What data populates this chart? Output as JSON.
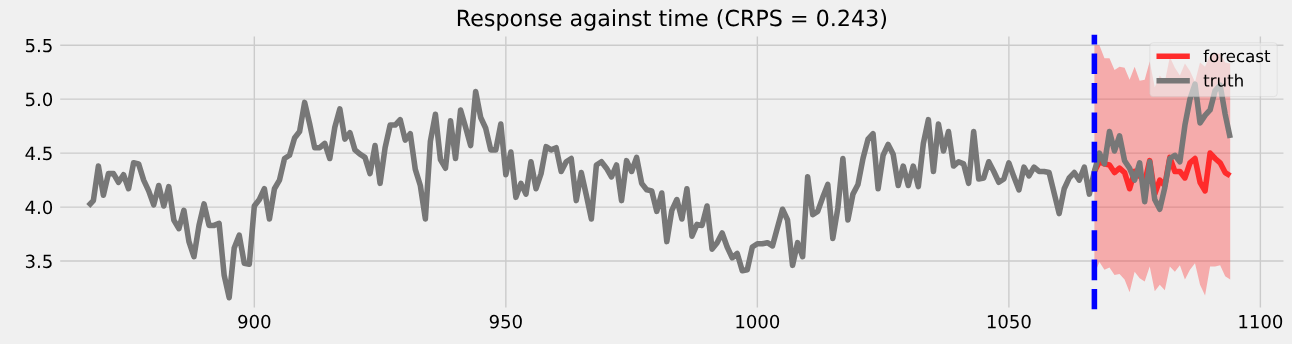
{
  "chart_data": {
    "type": "line",
    "title": "Response against time (CRPS = 0.243)",
    "xlim": [
      861,
      1105
    ],
    "ylim": [
      3.05,
      5.6
    ],
    "xticks": [
      900,
      950,
      1000,
      1050,
      1100
    ],
    "yticks": [
      3.5,
      {
        "value": 4,
        "label": "4.0"
      },
      4.5,
      {
        "value": 5,
        "label": "5.0"
      },
      5.5
    ],
    "grid": true,
    "legend": "top right",
    "ref_lines": [
      {
        "axis": "x",
        "value": 1067,
        "color": "#0000ff",
        "line_style": "dashed"
      }
    ],
    "series": [
      {
        "name": "forecast",
        "color": "#ff2b2b",
        "x": [
          1067,
          1068,
          1069,
          1070,
          1071,
          1072,
          1073,
          1074,
          1075,
          1076,
          1077,
          1078,
          1079,
          1080,
          1081,
          1082,
          1083,
          1084,
          1085,
          1086,
          1087,
          1088,
          1089,
          1090,
          1091,
          1092,
          1093,
          1094
        ],
        "values": [
          4.33,
          4.42,
          4.4,
          4.39,
          4.32,
          4.36,
          4.32,
          4.17,
          4.33,
          4.29,
          4.23,
          4.43,
          4.12,
          4.25,
          4.2,
          4.46,
          4.33,
          4.33,
          4.27,
          4.41,
          4.45,
          4.23,
          4.15,
          4.5,
          4.45,
          4.41,
          4.32,
          4.29
        ],
        "lower": [
          3.38,
          3.49,
          3.42,
          3.44,
          3.37,
          3.38,
          3.33,
          3.21,
          3.4,
          3.34,
          3.31,
          3.45,
          3.22,
          3.28,
          3.23,
          3.45,
          3.4,
          3.46,
          3.33,
          3.42,
          3.48,
          3.28,
          3.18,
          3.45,
          3.45,
          3.46,
          3.36,
          3.33
        ],
        "upper": [
          5.5,
          5.5,
          5.38,
          5.38,
          5.27,
          5.3,
          5.29,
          5.18,
          5.3,
          5.17,
          5.18,
          5.35,
          5.11,
          5.22,
          5.16,
          5.39,
          5.29,
          5.22,
          5.33,
          5.26,
          5.16,
          5.34,
          5.3,
          5.41,
          5.42,
          5.42,
          5.34,
          5.33
        ]
      },
      {
        "name": "truth",
        "color": "#777777",
        "x": [
          867,
          868,
          869,
          870,
          871,
          872,
          873,
          874,
          875,
          876,
          877,
          878,
          879,
          880,
          881,
          882,
          883,
          884,
          885,
          886,
          887,
          888,
          889,
          890,
          891,
          892,
          893,
          894,
          895,
          896,
          897,
          898,
          899,
          900,
          901,
          902,
          903,
          904,
          905,
          906,
          907,
          908,
          909,
          910,
          911,
          912,
          913,
          914,
          915,
          916,
          917,
          918,
          919,
          920,
          921,
          922,
          923,
          924,
          925,
          926,
          927,
          928,
          929,
          930,
          931,
          932,
          933,
          934,
          935,
          936,
          937,
          938,
          939,
          940,
          941,
          942,
          943,
          944,
          945,
          946,
          947,
          948,
          949,
          950,
          951,
          952,
          953,
          954,
          955,
          956,
          957,
          958,
          959,
          960,
          961,
          962,
          963,
          964,
          965,
          966,
          967,
          968,
          969,
          970,
          971,
          972,
          973,
          974,
          975,
          976,
          977,
          978,
          979,
          980,
          981,
          982,
          983,
          984,
          985,
          986,
          987,
          988,
          989,
          990,
          991,
          992,
          993,
          994,
          995,
          996,
          997,
          998,
          999,
          1000,
          1001,
          1002,
          1003,
          1004,
          1005,
          1006,
          1007,
          1008,
          1009,
          1010,
          1011,
          1012,
          1013,
          1014,
          1015,
          1016,
          1017,
          1018,
          1019,
          1020,
          1021,
          1022,
          1023,
          1024,
          1025,
          1026,
          1027,
          1028,
          1029,
          1030,
          1031,
          1032,
          1033,
          1034,
          1035,
          1036,
          1037,
          1038,
          1039,
          1040,
          1041,
          1042,
          1043,
          1044,
          1045,
          1046,
          1047,
          1048,
          1049,
          1050,
          1051,
          1052,
          1053,
          1054,
          1055,
          1056,
          1057,
          1058,
          1059,
          1060,
          1061,
          1062,
          1063,
          1064,
          1065,
          1066,
          1067,
          1068,
          1069,
          1070,
          1071,
          1072,
          1073,
          1074,
          1075,
          1076,
          1077,
          1078,
          1079,
          1080,
          1081,
          1082,
          1083,
          1084,
          1085,
          1086,
          1087,
          1088,
          1089,
          1090,
          1091,
          1092,
          1093,
          1094
        ],
        "values": [
          4.01,
          4.06,
          4.38,
          4.11,
          4.31,
          4.31,
          4.23,
          4.3,
          4.17,
          4.41,
          4.4,
          4.25,
          4.15,
          4.02,
          4.2,
          4.01,
          4.19,
          3.88,
          3.8,
          3.97,
          3.68,
          3.54,
          3.83,
          4.03,
          3.83,
          3.83,
          3.85,
          3.37,
          3.16,
          3.62,
          3.74,
          3.48,
          3.47,
          4.01,
          4.07,
          4.17,
          3.89,
          4.17,
          4.25,
          4.45,
          4.48,
          4.64,
          4.7,
          4.97,
          4.77,
          4.55,
          4.55,
          4.59,
          4.45,
          4.74,
          4.91,
          4.63,
          4.69,
          4.53,
          4.49,
          4.46,
          4.31,
          4.57,
          4.22,
          4.55,
          4.76,
          4.76,
          4.81,
          4.62,
          4.68,
          4.35,
          4.2,
          3.89,
          4.61,
          4.86,
          4.44,
          4.36,
          4.8,
          4.45,
          4.9,
          4.74,
          4.57,
          5.07,
          4.83,
          4.73,
          4.53,
          4.53,
          4.77,
          4.3,
          4.51,
          4.09,
          4.22,
          4.12,
          4.42,
          4.17,
          4.31,
          4.56,
          4.53,
          4.55,
          4.33,
          4.42,
          4.45,
          4.06,
          4.32,
          4.11,
          3.89,
          4.39,
          4.42,
          4.36,
          4.28,
          4.39,
          4.06,
          4.43,
          4.33,
          4.46,
          4.22,
          4.16,
          4.15,
          3.96,
          4.13,
          3.68,
          3.97,
          4.07,
          3.89,
          4.17,
          3.73,
          3.84,
          3.83,
          4.01,
          3.61,
          3.67,
          3.76,
          3.63,
          3.53,
          3.57,
          3.41,
          3.42,
          3.63,
          3.66,
          3.66,
          3.67,
          3.64,
          3.81,
          3.98,
          3.88,
          3.46,
          3.67,
          3.54,
          4.28,
          3.93,
          3.96,
          4.09,
          4.21,
          3.71,
          3.99,
          4.45,
          3.88,
          4.12,
          4.21,
          4.45,
          4.63,
          4.68,
          4.17,
          4.48,
          4.58,
          4.49,
          4.2,
          4.38,
          4.2,
          4.38,
          4.19,
          4.59,
          4.81,
          4.33,
          4.77,
          4.52,
          4.7,
          4.38,
          4.42,
          4.4,
          4.22,
          4.7,
          4.26,
          4.27,
          4.42,
          4.33,
          4.23,
          4.26,
          4.41,
          4.28,
          4.16,
          4.37,
          4.29,
          4.37,
          4.33,
          4.33,
          4.32,
          4.13,
          3.94,
          4.17,
          4.27,
          4.32,
          4.25,
          4.37,
          4.12,
          4.33,
          4.5,
          4.4,
          4.7,
          4.52,
          4.66,
          4.43,
          4.36,
          4.25,
          4.41,
          4.05,
          4.42,
          4.07,
          3.98,
          4.18,
          4.45,
          4.48,
          4.42,
          4.76,
          5.0,
          5.14,
          4.78,
          4.85,
          4.9,
          5.08,
          5.13,
          4.86,
          4.64
        ]
      }
    ]
  }
}
